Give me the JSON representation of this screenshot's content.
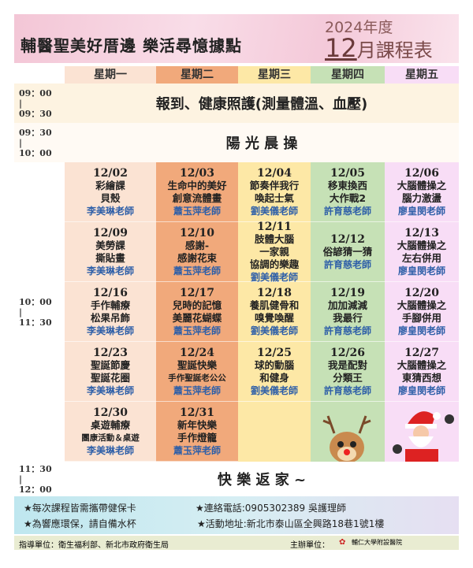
{
  "header": {
    "title": "輔醫聖美好厝邊  樂活尋憶據點",
    "year": "2024年度",
    "month_num": "12",
    "month_suffix": "月課程表"
  },
  "weekdays": [
    "星期一",
    "星期二",
    "星期三",
    "星期四",
    "星期五"
  ],
  "times": {
    "t1": [
      "09：00",
      "|",
      "09：30"
    ],
    "t2": [
      "09：30",
      "|",
      "10：00"
    ],
    "t3": [
      "10：00",
      "|",
      "11：30"
    ],
    "t4": [
      "11：30",
      "|",
      "12：00"
    ]
  },
  "bands": {
    "checkin": "報到、健康照護(測量體溫、血壓)",
    "exercise": "陽 光 晨 操",
    "home": "快 樂 返 家 ~"
  },
  "courses": [
    [
      {
        "date": "12/02",
        "lines": [
          "彩繪課",
          "貝殼"
        ],
        "teacher": "李美琳老師"
      },
      {
        "date": "12/03",
        "lines": [
          "生命中的美好",
          "創意流體畫"
        ],
        "teacher": "蕭玉萍老師"
      },
      {
        "date": "12/04",
        "lines": [
          "節奏伴我行",
          "喚起士氣"
        ],
        "teacher": "劉美儀老師"
      },
      {
        "date": "12/05",
        "lines": [
          "移東換西",
          "大作戰2"
        ],
        "teacher": "許育慈老師"
      },
      {
        "date": "12/06",
        "lines": [
          "大腦體操之",
          "腦力激盪"
        ],
        "teacher": "廖皇閔老師"
      }
    ],
    [
      {
        "date": "12/09",
        "lines": [
          "美勞課",
          "撕貼畫"
        ],
        "teacher": "李美琳老師"
      },
      {
        "date": "12/10",
        "lines": [
          "感謝-",
          "感謝花束"
        ],
        "teacher": "蕭玉萍老師"
      },
      {
        "date": "12/11",
        "lines": [
          "肢體大腦",
          "一家親",
          "協調的樂趣"
        ],
        "teacher": "劉美儀老師"
      },
      {
        "date": "12/12",
        "lines": [
          "俗諺猜一猜"
        ],
        "teacher": "許育慈老師"
      },
      {
        "date": "12/13",
        "lines": [
          "大腦體操之",
          "左右併用"
        ],
        "teacher": "廖皇閔老師"
      }
    ],
    [
      {
        "date": "12/16",
        "lines": [
          "手作輔療",
          "松果吊飾"
        ],
        "teacher": "李美琳老師"
      },
      {
        "date": "12/17",
        "lines": [
          "兒時的記憶",
          "美麗花蝴蝶"
        ],
        "teacher": "蕭玉萍老師"
      },
      {
        "date": "12/18",
        "lines": [
          "養肌健骨和",
          "嗅覺喚醒"
        ],
        "teacher": "劉美儀老師"
      },
      {
        "date": "12/19",
        "lines": [
          "加加減減",
          "我最行"
        ],
        "teacher": "許育慈老師"
      },
      {
        "date": "12/20",
        "lines": [
          "大腦體操之",
          "手腳併用"
        ],
        "teacher": "廖皇閔老師"
      }
    ],
    [
      {
        "date": "12/23",
        "lines": [
          "聖誕節慶",
          "聖誕花圈"
        ],
        "teacher": "李美琳老師"
      },
      {
        "date": "12/24",
        "lines": [
          "聖誕快樂",
          "手作聖誕老公公"
        ],
        "teacher": "蕭玉萍老師"
      },
      {
        "date": "12/25",
        "lines": [
          "球的動腦",
          "和健身"
        ],
        "teacher": "劉美儀老師"
      },
      {
        "date": "12/26",
        "lines": [
          "我是配對",
          "分類王"
        ],
        "teacher": "許育慈老師"
      },
      {
        "date": "12/27",
        "lines": [
          "大腦體操之",
          "東猜西想"
        ],
        "teacher": "廖皇閔老師"
      }
    ],
    [
      {
        "date": "12/30",
        "lines": [
          "桌遊輔療",
          "團康活動＆桌遊"
        ],
        "teacher": "李美琳老師"
      },
      {
        "date": "12/31",
        "lines": [
          "新年快樂",
          "手作燈籠"
        ],
        "teacher": "蕭玉萍老師"
      }
    ]
  ],
  "notes": {
    "n1": "★每次課程皆需攜帶健保卡",
    "n2": "★連絡電話:0905302389  吳護理師",
    "n3": "★為響應環保，請自備水杯",
    "n4": "★活動地址:新北市泰山區全興路18巷1號1樓"
  },
  "footer": {
    "guide": "指導單位：衛生福利部、新北市政府衛生局",
    "host_label": "主辦單位：",
    "host": "輔仁大學附設醫院"
  },
  "colors": {
    "mon": "#fbe3d3",
    "tue": "#f1a97b",
    "wed": "#fde8a6",
    "thu": "#c6e1b6",
    "fri": "#f8ddf6",
    "teacher": "#2e5fa8"
  },
  "icons": [
    "reindeer-illustration",
    "santa-illustration",
    "hospital-logo"
  ]
}
